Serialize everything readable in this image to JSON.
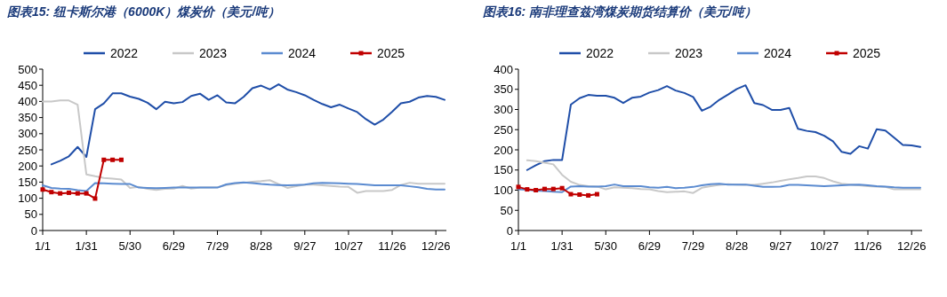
{
  "chart_data": [
    {
      "type": "line",
      "title": "图表15: 纽卡斯尔港（6000K）煤炭价（美元/吨）",
      "legend": "top",
      "categories": [
        "1/1",
        null,
        null,
        null,
        null,
        "1/31",
        null,
        null,
        null,
        null,
        "5/30",
        null,
        null,
        null,
        null,
        "6/29",
        null,
        null,
        null,
        null,
        "7/29",
        null,
        null,
        null,
        null,
        "8/28",
        null,
        null,
        null,
        null,
        "9/27",
        null,
        null,
        null,
        null,
        "10/27",
        null,
        null,
        null,
        null,
        "11/26",
        null,
        null,
        null,
        null,
        "12/26",
        null
      ],
      "ylim": [
        0,
        500
      ],
      "yticks": [
        0,
        50,
        100,
        150,
        200,
        250,
        300,
        350,
        400,
        450,
        500
      ],
      "series": [
        {
          "name": "2022",
          "color": "#1f4ea8",
          "values": [
            null,
            205,
            216,
            230,
            259,
            228,
            376,
            394,
            425,
            425,
            415,
            408,
            396,
            376,
            399,
            394,
            398,
            417,
            424,
            405,
            419,
            397,
            394,
            414,
            441,
            449,
            437,
            453,
            437,
            429,
            419,
            405,
            392,
            382,
            390,
            378,
            367,
            345,
            328,
            344,
            368,
            394,
            399,
            412,
            417,
            414,
            405
          ]
        },
        {
          "name": "2023",
          "color": "#c8c8c8",
          "values": [
            400,
            400,
            403,
            403,
            390,
            174,
            168,
            163,
            161,
            158,
            132,
            135,
            129,
            126,
            129,
            130,
            138,
            130,
            133,
            133,
            134,
            141,
            145,
            148,
            151,
            153,
            156,
            144,
            132,
            137,
            142,
            142,
            140,
            138,
            136,
            135,
            117,
            122,
            122,
            122,
            126,
            141,
            148,
            145,
            145,
            145,
            145
          ]
        },
        {
          "name": "2024",
          "color": "#5b8bd0",
          "values": [
            140,
            132,
            130,
            129,
            125,
            122,
            147,
            146,
            145,
            144,
            144,
            133,
            132,
            131,
            132,
            133,
            133,
            133,
            133,
            133,
            133,
            143,
            147,
            149,
            147,
            144,
            142,
            141,
            140,
            141,
            142,
            146,
            148,
            147,
            146,
            145,
            144,
            142,
            140,
            140,
            140,
            140,
            137,
            134,
            129,
            127,
            127
          ]
        },
        {
          "name": "2025",
          "color": "#c00000",
          "marker": "square",
          "values": [
            127,
            119,
            115,
            117,
            115,
            115,
            99,
            219,
            219,
            219,
            null,
            null,
            null,
            null,
            null,
            null,
            null,
            null,
            null,
            null,
            null,
            null,
            null,
            null,
            null,
            null,
            null,
            null,
            null,
            null,
            null,
            null,
            null,
            null,
            null,
            null,
            null,
            null,
            null,
            null,
            null,
            null,
            null,
            null,
            null,
            null,
            null
          ]
        }
      ]
    },
    {
      "type": "line",
      "title": "图表16: 南非理查兹湾煤炭期货结算价（美元/吨）",
      "legend": "top",
      "categories": [
        "1/1",
        null,
        null,
        null,
        null,
        "1/31",
        null,
        null,
        null,
        null,
        "5/30",
        null,
        null,
        null,
        null,
        "6/29",
        null,
        null,
        null,
        null,
        "7/29",
        null,
        null,
        null,
        null,
        "8/28",
        null,
        null,
        null,
        null,
        "9/27",
        null,
        null,
        null,
        null,
        "10/27",
        null,
        null,
        null,
        null,
        "11/26",
        null,
        null,
        null,
        null,
        "12/26",
        null
      ],
      "ylim": [
        0,
        400
      ],
      "yticks": [
        0,
        50,
        100,
        150,
        200,
        250,
        300,
        350,
        400
      ],
      "series": [
        {
          "name": "2022",
          "color": "#1f4ea8",
          "values": [
            null,
            150,
            162,
            172,
            175,
            175,
            312,
            328,
            336,
            334,
            334,
            329,
            316,
            329,
            332,
            342,
            348,
            358,
            347,
            341,
            331,
            297,
            307,
            324,
            337,
            351,
            360,
            316,
            311,
            299,
            299,
            304,
            252,
            247,
            244,
            235,
            221,
            195,
            190,
            209,
            203,
            251,
            248,
            230,
            212,
            211,
            207
          ]
        },
        {
          "name": "2023",
          "color": "#c8c8c8",
          "values": [
            null,
            174,
            172,
            168,
            164,
            138,
            121,
            113,
            110,
            109,
            102,
            107,
            106,
            105,
            103,
            102,
            98,
            95,
            96,
            97,
            93,
            106,
            110,
            113,
            115,
            114,
            113,
            113,
            116,
            119,
            123,
            127,
            130,
            134,
            134,
            130,
            122,
            116,
            114,
            112,
            110,
            109,
            108,
            102,
            102,
            102,
            102
          ]
        },
        {
          "name": "2024",
          "color": "#5b8bd0",
          "values": [
            102,
            101,
            99,
            98,
            96,
            95,
            109,
            110,
            109,
            109,
            110,
            114,
            110,
            110,
            110,
            107,
            106,
            108,
            105,
            106,
            108,
            112,
            115,
            116,
            114,
            114,
            114,
            111,
            108,
            108,
            109,
            113,
            113,
            112,
            111,
            110,
            111,
            112,
            113,
            114,
            112,
            110,
            109,
            107,
            106,
            106,
            106
          ]
        },
        {
          "name": "2025",
          "color": "#c00000",
          "marker": "square",
          "values": [
            108,
            102,
            100,
            103,
            103,
            105,
            90,
            89,
            87,
            90,
            null,
            null,
            null,
            null,
            null,
            null,
            null,
            null,
            null,
            null,
            null,
            null,
            null,
            null,
            null,
            null,
            null,
            null,
            null,
            null,
            null,
            null,
            null,
            null,
            null,
            null,
            null,
            null,
            null,
            null,
            null,
            null,
            null,
            null,
            null,
            null,
            null
          ]
        }
      ]
    }
  ]
}
